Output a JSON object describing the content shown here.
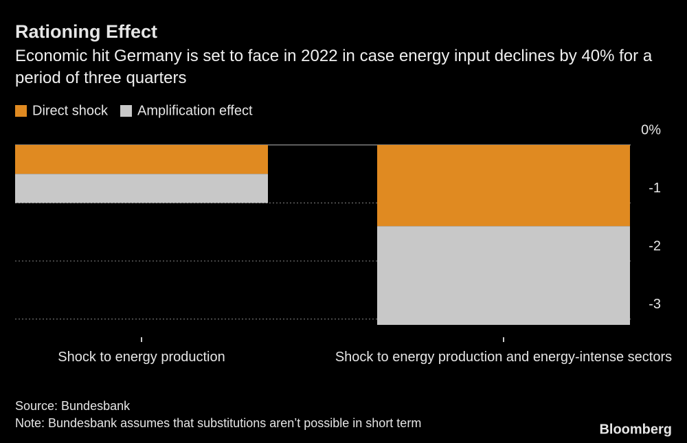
{
  "chart_data": {
    "type": "bar",
    "stacked": true,
    "title": "Rationing Effect",
    "subtitle": "Economic hit Germany is set to face in 2022 in case energy input declines by 40% for a period of three quarters",
    "categories": [
      "Shock to energy production",
      "Shock to energy production and energy-intense sectors"
    ],
    "series": [
      {
        "name": "Direct shock",
        "color": "#e08a21",
        "values": [
          -0.5,
          -1.4
        ]
      },
      {
        "name": "Amplification effect",
        "color": "#c8c8c8",
        "values": [
          -0.5,
          -1.7
        ]
      }
    ],
    "ylim": [
      -3.1,
      0
    ],
    "yticks": [
      {
        "value": 0,
        "label": "0%"
      },
      -1,
      -2,
      -3
    ],
    "grid": true,
    "source": "Source: Bundesbank",
    "note": "Note: Bundesbank assumes that substitutions aren’t possible in short term",
    "brand": "Bloomberg"
  }
}
